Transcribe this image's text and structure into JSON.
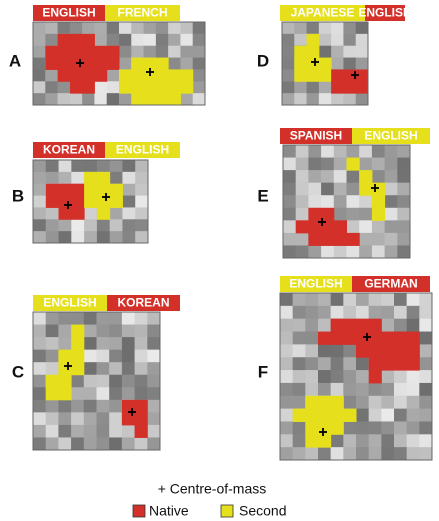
{
  "panels": [
    {
      "letter": "A",
      "labels": [
        {
          "text": "ENGLISH",
          "color": "#d4302a"
        },
        {
          "text": "FRENCH",
          "color": "#e6e01c"
        }
      ]
    },
    {
      "letter": "D",
      "labels": [
        {
          "text": "JAPANESE",
          "color": "#e6e01c"
        },
        {
          "text": "ENGLISH",
          "color": "#d4302a"
        }
      ]
    },
    {
      "letter": "B",
      "labels": [
        {
          "text": "KOREAN",
          "color": "#d4302a"
        },
        {
          "text": "ENGLISH",
          "color": "#e6e01c"
        }
      ]
    },
    {
      "letter": "E",
      "labels": [
        {
          "text": "SPANISH",
          "color": "#d4302a"
        },
        {
          "text": "ENGLISH",
          "color": "#e6e01c"
        }
      ]
    },
    {
      "letter": "C",
      "labels": [
        {
          "text": "ENGLISH",
          "color": "#e6e01c"
        },
        {
          "text": "KOREAN",
          "color": "#d4302a"
        }
      ]
    },
    {
      "letter": "F",
      "labels": [
        {
          "text": "ENGLISH",
          "color": "#e6e01c"
        },
        {
          "text": "GERMAN",
          "color": "#d4302a"
        }
      ]
    }
  ],
  "legend": {
    "centre": "+ Centre-of-mass",
    "native": {
      "text": "Native",
      "color": "#d4302a"
    },
    "second": {
      "text": "Second",
      "color": "#e6e01c"
    }
  }
}
